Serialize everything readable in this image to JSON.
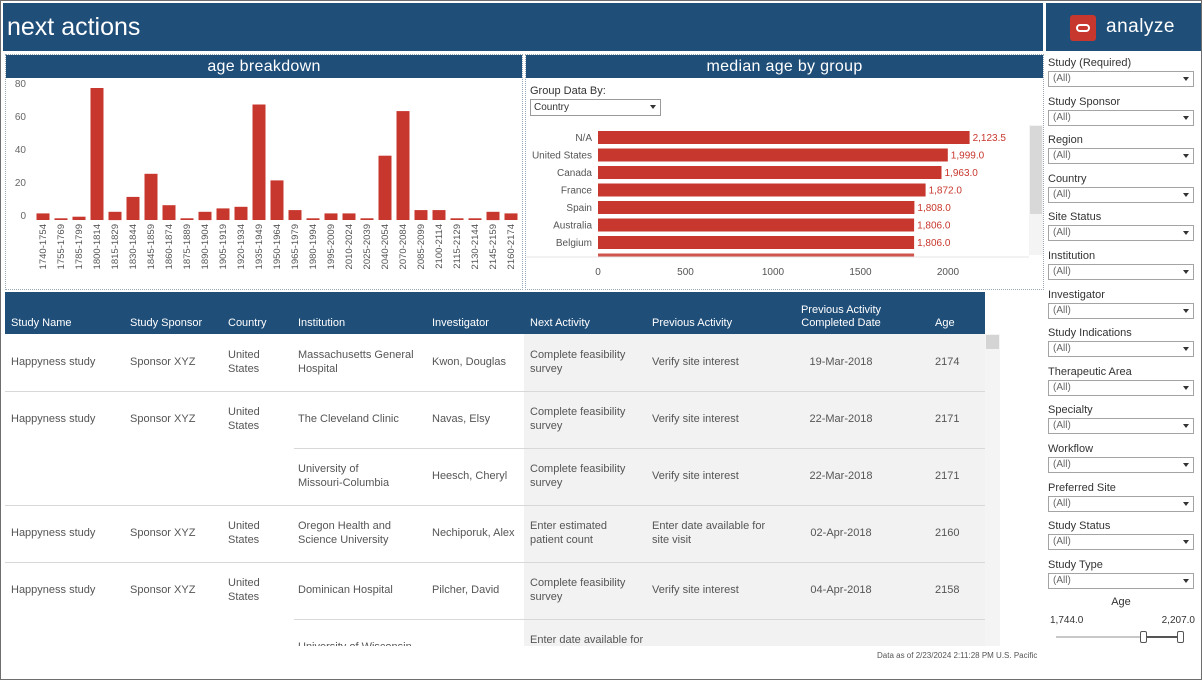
{
  "header": {
    "title": "next actions",
    "brand": "analyze"
  },
  "age_panel": {
    "title": "age breakdown"
  },
  "median_panel": {
    "title": "median age by group",
    "group_by_label": "Group Data By:",
    "group_by_value": "Country"
  },
  "chart_data": [
    {
      "type": "bar",
      "title": "age breakdown",
      "orientation": "vertical",
      "categories": [
        "1740-1754",
        "1755-1769",
        "1785-1799",
        "1800-1814",
        "1815-1829",
        "1830-1844",
        "1845-1859",
        "1860-1874",
        "1875-1889",
        "1890-1904",
        "1905-1919",
        "1920-1934",
        "1935-1949",
        "1950-1964",
        "1965-1979",
        "1980-1994",
        "1995-2009",
        "2010-2024",
        "2025-2039",
        "2040-2054",
        "2070-2084",
        "2085-2099",
        "2100-2114",
        "2115-2129",
        "2130-2144",
        "2145-2159",
        "2160-2174"
      ],
      "values": [
        4,
        1,
        2,
        80,
        5,
        14,
        28,
        9,
        1,
        5,
        7,
        8,
        70,
        24,
        6,
        1,
        4,
        4,
        1,
        39,
        66,
        6,
        6,
        1,
        1,
        5,
        4
      ],
      "yticks": [
        0,
        20,
        40,
        60,
        80
      ],
      "ylim": [
        0,
        80
      ],
      "color": "#c8372d"
    },
    {
      "type": "bar",
      "title": "median age by group",
      "orientation": "horizontal",
      "categories": [
        "N/A",
        "United States",
        "Canada",
        "France",
        "Spain",
        "Australia",
        "Belgium"
      ],
      "values": [
        2123.5,
        1999.0,
        1963.0,
        1872.0,
        1808.0,
        1806.0,
        1806.0
      ],
      "value_labels": [
        "2,123.5",
        "1,999.0",
        "1,963.0",
        "1,872.0",
        "1,808.0",
        "1,806.0",
        "1,806.0"
      ],
      "xticks": [
        0,
        500,
        1000,
        1500,
        2000
      ],
      "xlim": [
        0,
        2200
      ],
      "color": "#c8372d"
    }
  ],
  "table": {
    "headers": {
      "study_name": "Study Name",
      "study_sponsor": "Study Sponsor",
      "country": "Country",
      "institution": "Institution",
      "investigator": "Investigator",
      "next_activity": "Next Activity",
      "previous_activity": "Previous Activity",
      "prev_completed_1": "Previous Activity",
      "prev_completed_2": "Completed Date",
      "age": "Age"
    },
    "rows": [
      {
        "study": "Happyness study",
        "sponsor": "Sponsor XYZ",
        "country1": "United",
        "country2": "States",
        "inst1": "Massachusetts General",
        "inst2": "Hospital",
        "investigator": "Kwon, Douglas",
        "next1": "Complete feasibility",
        "next2": "survey",
        "prev1": "Verify site interest",
        "prev2": "",
        "date": "19-Mar-2018",
        "age": "2174"
      },
      {
        "study": "Happyness study",
        "sponsor": "Sponsor XYZ",
        "country1": "United",
        "country2": "States",
        "inst1": "The Cleveland Clinic",
        "inst2": "",
        "investigator": "Navas, Elsy",
        "next1": "Complete feasibility",
        "next2": "survey",
        "prev1": "Verify site interest",
        "prev2": "",
        "date": "22-Mar-2018",
        "age": "2171"
      },
      {
        "study": "",
        "sponsor": "",
        "country1": "",
        "country2": "",
        "inst1": "University of",
        "inst2": "Missouri-Columbia",
        "investigator": "Heesch, Cheryl",
        "next1": "Complete feasibility",
        "next2": "survey",
        "prev1": "Verify site interest",
        "prev2": "",
        "date": "22-Mar-2018",
        "age": "2171"
      },
      {
        "study": "Happyness study",
        "sponsor": "Sponsor XYZ",
        "country1": "United",
        "country2": "States",
        "inst1": "Oregon Health and",
        "inst2": "Science University",
        "investigator": "Nechiporuk, Alex",
        "next1": "Enter estimated",
        "next2": "patient count",
        "prev1": "Enter date available for",
        "prev2": "site visit",
        "date": "02-Apr-2018",
        "age": "2160"
      },
      {
        "study": "Happyness study",
        "sponsor": "Sponsor XYZ",
        "country1": "United",
        "country2": "States",
        "inst1": "Dominican Hospital",
        "inst2": "",
        "investigator": "Pilcher, David",
        "next1": "Complete feasibility",
        "next2": "survey",
        "prev1": "Verify site interest",
        "prev2": "",
        "date": "04-Apr-2018",
        "age": "2158"
      },
      {
        "study": "",
        "sponsor": "",
        "country1": "",
        "country2": "",
        "inst1": "University of Wisconsin...",
        "inst2": "",
        "investigator": "",
        "next1": "Enter date available for",
        "next2": "",
        "prev1": "",
        "prev2": "",
        "date": "",
        "age": ""
      }
    ]
  },
  "footnote": "Data as of 2/23/2024 2:11:28 PM U.S. Pacific",
  "filters": [
    {
      "label": "Study (Required)",
      "value": "(All)"
    },
    {
      "label": "Study Sponsor",
      "value": "(All)"
    },
    {
      "label": "Region",
      "value": "(All)"
    },
    {
      "label": "Country",
      "value": "(All)"
    },
    {
      "label": "Site Status",
      "value": "(All)"
    },
    {
      "label": "Institution",
      "value": "(All)"
    },
    {
      "label": "Investigator",
      "value": "(All)"
    },
    {
      "label": "Study Indications",
      "value": "(All)"
    },
    {
      "label": "Therapeutic Area",
      "value": "(All)"
    },
    {
      "label": "Specialty",
      "value": "(All)"
    },
    {
      "label": "Workflow",
      "value": "(All)"
    },
    {
      "label": "Preferred Site",
      "value": "(All)"
    },
    {
      "label": "Study Status",
      "value": "(All)"
    },
    {
      "label": "Study Type",
      "value": "(All)"
    }
  ],
  "age_filter": {
    "label": "Age",
    "min": "1,744.0",
    "max": "2,207.0"
  }
}
